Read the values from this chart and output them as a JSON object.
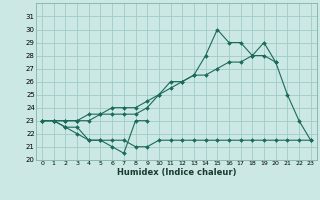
{
  "title": "",
  "xlabel": "Humidex (Indice chaleur)",
  "bg_color": "#cce8e4",
  "grid_color": "#a0ccc8",
  "line_color": "#1a6b5a",
  "xlim": [
    -0.5,
    23.5
  ],
  "ylim": [
    20,
    32
  ],
  "yticks": [
    20,
    21,
    22,
    23,
    24,
    25,
    26,
    27,
    28,
    29,
    30,
    31
  ],
  "xticks": [
    0,
    1,
    2,
    3,
    4,
    5,
    6,
    7,
    8,
    9,
    10,
    11,
    12,
    13,
    14,
    15,
    16,
    17,
    18,
    19,
    20,
    21,
    22,
    23
  ],
  "series": [
    {
      "x": [
        0,
        1,
        2,
        3,
        4,
        5,
        6,
        7,
        8,
        9,
        10,
        11,
        12,
        13,
        14,
        15,
        16,
        17,
        18,
        19,
        20,
        21,
        22,
        23
      ],
      "y": [
        23,
        23,
        22.5,
        22,
        21.5,
        21.5,
        21.5,
        21.5,
        21,
        21,
        21.5,
        21.5,
        21.5,
        21.5,
        21.5,
        21.5,
        21.5,
        21.5,
        21.5,
        21.5,
        21.5,
        21.5,
        21.5,
        21.5
      ]
    },
    {
      "x": [
        0,
        1,
        2,
        3,
        4,
        5,
        6,
        7,
        8,
        9
      ],
      "y": [
        23,
        23,
        22.5,
        22.5,
        21.5,
        21.5,
        21,
        20.5,
        23,
        23
      ]
    },
    {
      "x": [
        0,
        1,
        2,
        3,
        4,
        5,
        6,
        7,
        8,
        9,
        10,
        11,
        12,
        13,
        14,
        15,
        16,
        17,
        18,
        19,
        20
      ],
      "y": [
        23,
        23,
        23,
        23,
        23.5,
        23.5,
        24,
        24,
        24,
        24.5,
        25,
        25.5,
        26,
        26.5,
        26.5,
        27,
        27.5,
        27.5,
        28,
        28,
        27.5
      ]
    },
    {
      "x": [
        0,
        1,
        2,
        3,
        4,
        5,
        6,
        7,
        8,
        9,
        10,
        11,
        12,
        13,
        14,
        15,
        16,
        17,
        18,
        19,
        20,
        21,
        22,
        23
      ],
      "y": [
        23,
        23,
        23,
        23,
        23,
        23.5,
        23.5,
        23.5,
        23.5,
        24,
        25,
        26,
        26,
        26.5,
        28,
        30,
        29,
        29,
        28,
        29,
        27.5,
        25,
        23,
        21.5
      ]
    }
  ]
}
